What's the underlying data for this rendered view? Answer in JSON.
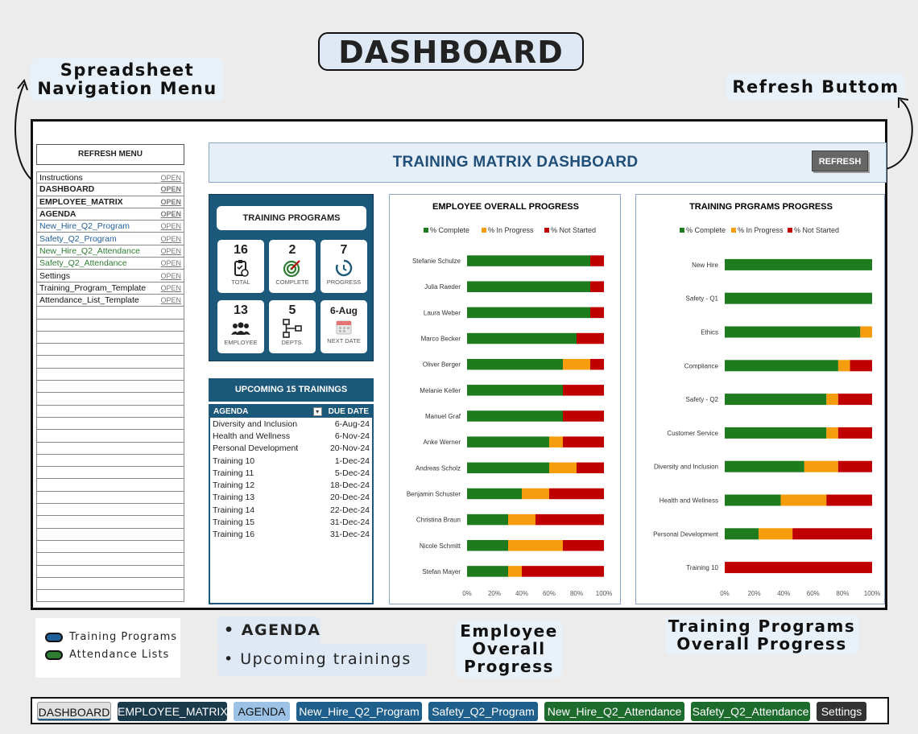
{
  "page_title": "DASHBOARD",
  "callouts": {
    "nav_menu": "Spreadsheet Navigation Menu",
    "refresh": "Refresh Buttom",
    "employee_progress": "Employee Overall Progress",
    "training_progress": "Training Programs Overall Progress"
  },
  "agenda_callout": {
    "item1": "AGENDA",
    "item2": "Upcoming trainings"
  },
  "legend": {
    "training_programs": "Training Programs",
    "attendance_lists": "Attendance Lists",
    "colors": {
      "training_programs": "#1f5f9c",
      "attendance_lists": "#2e7d32"
    }
  },
  "sidebar": {
    "refresh_menu": "REFRESH MENU",
    "open_label": "OPEN",
    "items": [
      {
        "label": "Instructions",
        "style": "dark"
      },
      {
        "label": "DASHBOARD",
        "style": "bold"
      },
      {
        "label": "EMPLOYEE_MATRIX",
        "style": "bold"
      },
      {
        "label": "AGENDA",
        "style": "bold"
      },
      {
        "label": "New_Hire_Q2_Program",
        "style": "blue"
      },
      {
        "label": "Safety_Q2_Program",
        "style": "blue"
      },
      {
        "label": "New_Hire_Q2_Attendance",
        "style": "green"
      },
      {
        "label": "Safety_Q2_Attendance",
        "style": "green"
      },
      {
        "label": "Settings",
        "style": "dark"
      },
      {
        "label": "Training_Program_Template",
        "style": "dark"
      },
      {
        "label": "Attendance_List_Template",
        "style": "dark"
      }
    ]
  },
  "banner": {
    "title": "TRAINING MATRIX DASHBOARD",
    "refresh_label": "REFRESH"
  },
  "kpis": {
    "header": "TRAINING PROGRAMS",
    "total": {
      "value": "16",
      "label": "TOTAL",
      "icon": "clipboard-icon"
    },
    "complete": {
      "value": "2",
      "label": "COMPLETE",
      "icon": "target-icon"
    },
    "progress": {
      "value": "7",
      "label": "PROGRESS",
      "icon": "timer-icon"
    },
    "employee": {
      "value": "13",
      "label": "EMPLOYEE",
      "icon": "people-icon"
    },
    "depts": {
      "value": "5",
      "label": "DEPTS.",
      "icon": "org-chart-icon"
    },
    "next_date": {
      "value": "6-Aug",
      "label": "NEXT DATE",
      "icon": "calendar-icon"
    }
  },
  "upcoming": {
    "header": "UPCOMING 15 TRAININGS",
    "col_agenda": "AGENDA",
    "col_due": "DUE DATE",
    "rows": [
      {
        "name": "Diversity and Inclusion",
        "date": "6-Aug-24"
      },
      {
        "name": "Health and Wellness",
        "date": "6-Nov-24"
      },
      {
        "name": "Personal Development",
        "date": "20-Nov-24"
      },
      {
        "name": "Training 10",
        "date": "1-Dec-24"
      },
      {
        "name": "Training 11",
        "date": "5-Dec-24"
      },
      {
        "name": "Training 12",
        "date": "18-Dec-24"
      },
      {
        "name": "Training 13",
        "date": "20-Dec-24"
      },
      {
        "name": "Training 14",
        "date": "22-Dec-24"
      },
      {
        "name": "Training 15",
        "date": "31-Dec-24"
      },
      {
        "name": "Training 16",
        "date": "31-Dec-24"
      }
    ]
  },
  "chart_data": [
    {
      "type": "bar",
      "orientation": "horizontal-stacked",
      "title": "EMPLOYEE OVERALL PROGRESS",
      "legend_position": "top",
      "colors": {
        "complete": "#1e7b1e",
        "in_progress": "#f79c0c",
        "not_started": "#c00000"
      },
      "categories": [
        "Stefanie Schulze",
        "Julia Raeder",
        "Laura Weber",
        "Marco Becker",
        "Oliver Berger",
        "Melanie Keller",
        "Manuel Graf",
        "Anke Werner",
        "Andreas Scholz",
        "Benjamin Schuster",
        "Christina Braun",
        "Nicole Schmitt",
        "Stefan Mayer"
      ],
      "series": [
        {
          "name": "% Complete",
          "values": [
            90,
            90,
            90,
            80,
            70,
            70,
            70,
            60,
            60,
            40,
            30,
            30,
            30
          ]
        },
        {
          "name": "% In Progress",
          "values": [
            0,
            0,
            0,
            0,
            20,
            0,
            0,
            10,
            20,
            20,
            20,
            40,
            10
          ]
        },
        {
          "name": "% Not Started",
          "values": [
            10,
            10,
            10,
            20,
            10,
            30,
            30,
            30,
            20,
            40,
            50,
            30,
            60
          ]
        }
      ],
      "x_ticks": [
        "0%",
        "20%",
        "40%",
        "60%",
        "80%",
        "100%"
      ],
      "xlim": [
        0,
        100
      ]
    },
    {
      "type": "bar",
      "orientation": "horizontal-stacked",
      "title": "TRAINING PRGRAMS PROGRESS",
      "legend_position": "top",
      "colors": {
        "complete": "#1e7b1e",
        "in_progress": "#f79c0c",
        "not_started": "#c00000"
      },
      "categories": [
        "New Hire",
        "Safety - Q1",
        "Ethics",
        "Compliance",
        "Safety - Q2",
        "Customer Service",
        "Diversity and Inclusion",
        "Health and Wellness",
        "Personal Development",
        "Training 10"
      ],
      "series": [
        {
          "name": "% Complete",
          "values": [
            100,
            100,
            92,
            77,
            69,
            69,
            54,
            38,
            23,
            0
          ]
        },
        {
          "name": "% In Progress",
          "values": [
            0,
            0,
            8,
            8,
            8,
            8,
            23,
            31,
            23,
            0
          ]
        },
        {
          "name": "% Not Started",
          "values": [
            0,
            0,
            0,
            15,
            23,
            23,
            23,
            31,
            54,
            100
          ]
        }
      ],
      "x_ticks": [
        "0%",
        "20%",
        "40%",
        "60%",
        "80%",
        "100%"
      ],
      "xlim": [
        0,
        100
      ]
    }
  ],
  "tabs": [
    {
      "label": "DASHBOARD",
      "color": "#e0e0e0",
      "text": "#111"
    },
    {
      "label": "EMPLOYEE_MATRIX",
      "color": "#1b3a4b",
      "text": "#ffffff"
    },
    {
      "label": "AGENDA",
      "color": "#9cc3e6",
      "text": "#111"
    },
    {
      "label": "New_Hire_Q2_Program",
      "color": "#1f5f8b",
      "text": "#ffffff"
    },
    {
      "label": "Safety_Q2_Program",
      "color": "#1f5f8b",
      "text": "#ffffff"
    },
    {
      "label": "New_Hire_Q2_Attendance",
      "color": "#1e6b2e",
      "text": "#ffffff"
    },
    {
      "label": "Safety_Q2_Attendance",
      "color": "#1e6b2e",
      "text": "#ffffff"
    },
    {
      "label": "Settings",
      "color": "#333333",
      "text": "#ffffff"
    }
  ]
}
